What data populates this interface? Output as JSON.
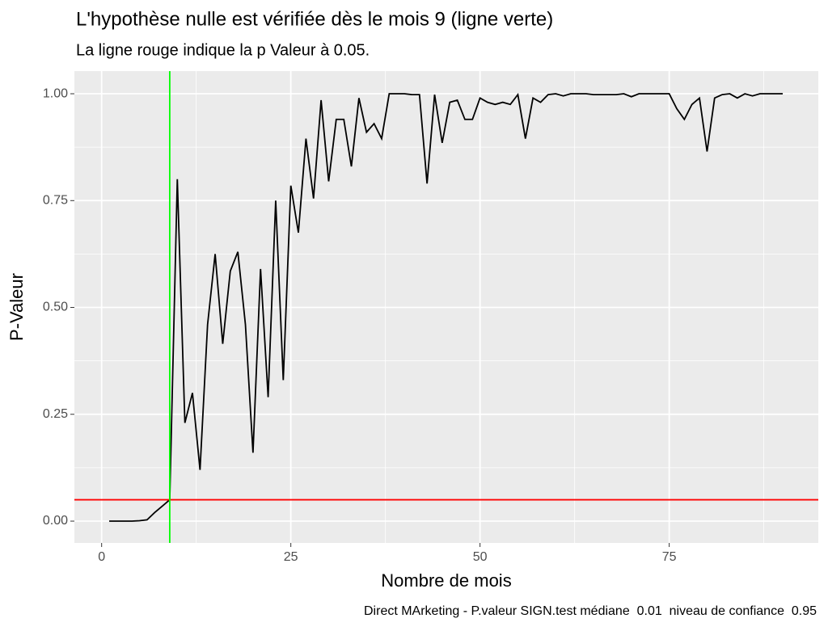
{
  "chart_data": {
    "type": "line",
    "title": "L'hypothèse nulle est vérifiée dès le mois 9 (ligne verte)",
    "subtitle": "La ligne rouge indique la p Valeur à 0.05.",
    "x_label": "Nombre de mois",
    "y_label": "P-Valeur",
    "caption": "Direct MArketing - P.valeur SIGN.test médiane  0.01  niveau de confiance  0.95",
    "x": [
      1,
      2,
      3,
      4,
      5,
      6,
      7,
      8,
      9,
      10,
      11,
      12,
      13,
      14,
      15,
      16,
      17,
      18,
      19,
      20,
      21,
      22,
      23,
      24,
      25,
      26,
      27,
      28,
      29,
      30,
      31,
      32,
      33,
      34,
      35,
      36,
      37,
      38,
      39,
      40,
      41,
      42,
      43,
      44,
      45,
      46,
      47,
      48,
      49,
      50,
      51,
      52,
      53,
      54,
      55,
      56,
      57,
      58,
      59,
      60,
      61,
      62,
      63,
      64,
      65,
      66,
      67,
      68,
      69,
      70,
      71,
      72,
      73,
      74,
      75,
      76,
      77,
      78,
      79,
      80,
      81,
      82,
      83,
      84,
      85,
      86,
      87,
      88,
      89,
      90
    ],
    "series": [
      {
        "name": "P-Valeur",
        "color": "#000000",
        "values": [
          0,
          0,
          0,
          0,
          0.001,
          0.003,
          0.02,
          0.035,
          0.05,
          0.8,
          0.23,
          0.3,
          0.12,
          0.46,
          0.625,
          0.415,
          0.585,
          0.63,
          0.46,
          0.16,
          0.59,
          0.29,
          0.75,
          0.33,
          0.785,
          0.675,
          0.895,
          0.755,
          0.985,
          0.795,
          0.94,
          0.94,
          0.83,
          0.99,
          0.91,
          0.93,
          0.895,
          1,
          1,
          1,
          0.998,
          0.998,
          0.79,
          0.998,
          0.885,
          0.98,
          0.985,
          0.94,
          0.94,
          0.99,
          0.98,
          0.975,
          0.98,
          0.975,
          0.998,
          0.895,
          0.99,
          0.98,
          0.998,
          1,
          0.995,
          1,
          1,
          1,
          0.998,
          0.998,
          0.998,
          0.998,
          1,
          0.993,
          1,
          1,
          1,
          1,
          1,
          0.965,
          0.94,
          0.975,
          0.99,
          0.865,
          0.99,
          0.998,
          1,
          0.99,
          1,
          0.995,
          1,
          1,
          1,
          1
        ]
      }
    ],
    "hline": {
      "value": 0.05,
      "color": "#ff0000"
    },
    "vline": {
      "value": 9,
      "color": "#00ff00"
    },
    "xlim": [
      -3.6,
      94.7
    ],
    "ylim": [
      -0.051,
      1.053
    ],
    "xticks": [
      0,
      25,
      50,
      75
    ],
    "yticks": [
      {
        "value": 0,
        "label": "0.00"
      },
      {
        "value": 0.25,
        "label": "0.25"
      },
      {
        "value": 0.5,
        "label": "0.50"
      },
      {
        "value": 0.75,
        "label": "0.75"
      },
      {
        "value": 1,
        "label": "1.00"
      }
    ],
    "grid": true
  }
}
